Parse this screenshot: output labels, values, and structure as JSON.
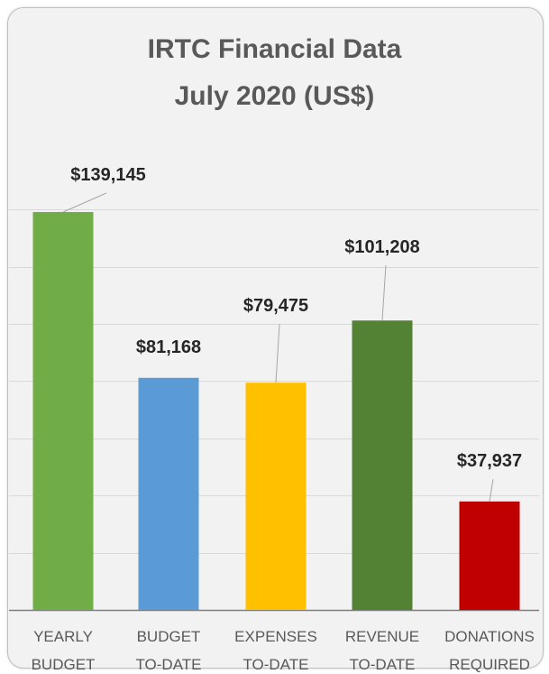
{
  "chart_data": {
    "type": "bar",
    "title": [
      "IRTC Financial Data",
      "July 2020 (US$)"
    ],
    "categories": [
      [
        "YEARLY",
        "BUDGET"
      ],
      [
        "BUDGET",
        "TO-DATE"
      ],
      [
        "EXPENSES",
        "TO-DATE"
      ],
      [
        "REVENUE",
        "TO-DATE"
      ],
      [
        "DONATIONS",
        "REQUIRED"
      ]
    ],
    "values": [
      139145,
      81168,
      79475,
      101208,
      37937
    ],
    "data_labels": [
      "$139,145",
      "$81,168",
      "$79,475",
      "$101,208",
      "$37,937"
    ],
    "bar_colors": [
      "#70ad47",
      "#5b9bd5",
      "#ffc000",
      "#548235",
      "#c00000"
    ],
    "ylim": [
      0,
      140000
    ],
    "xlabel": "",
    "ylabel": "",
    "grid": true,
    "legend": "none"
  }
}
